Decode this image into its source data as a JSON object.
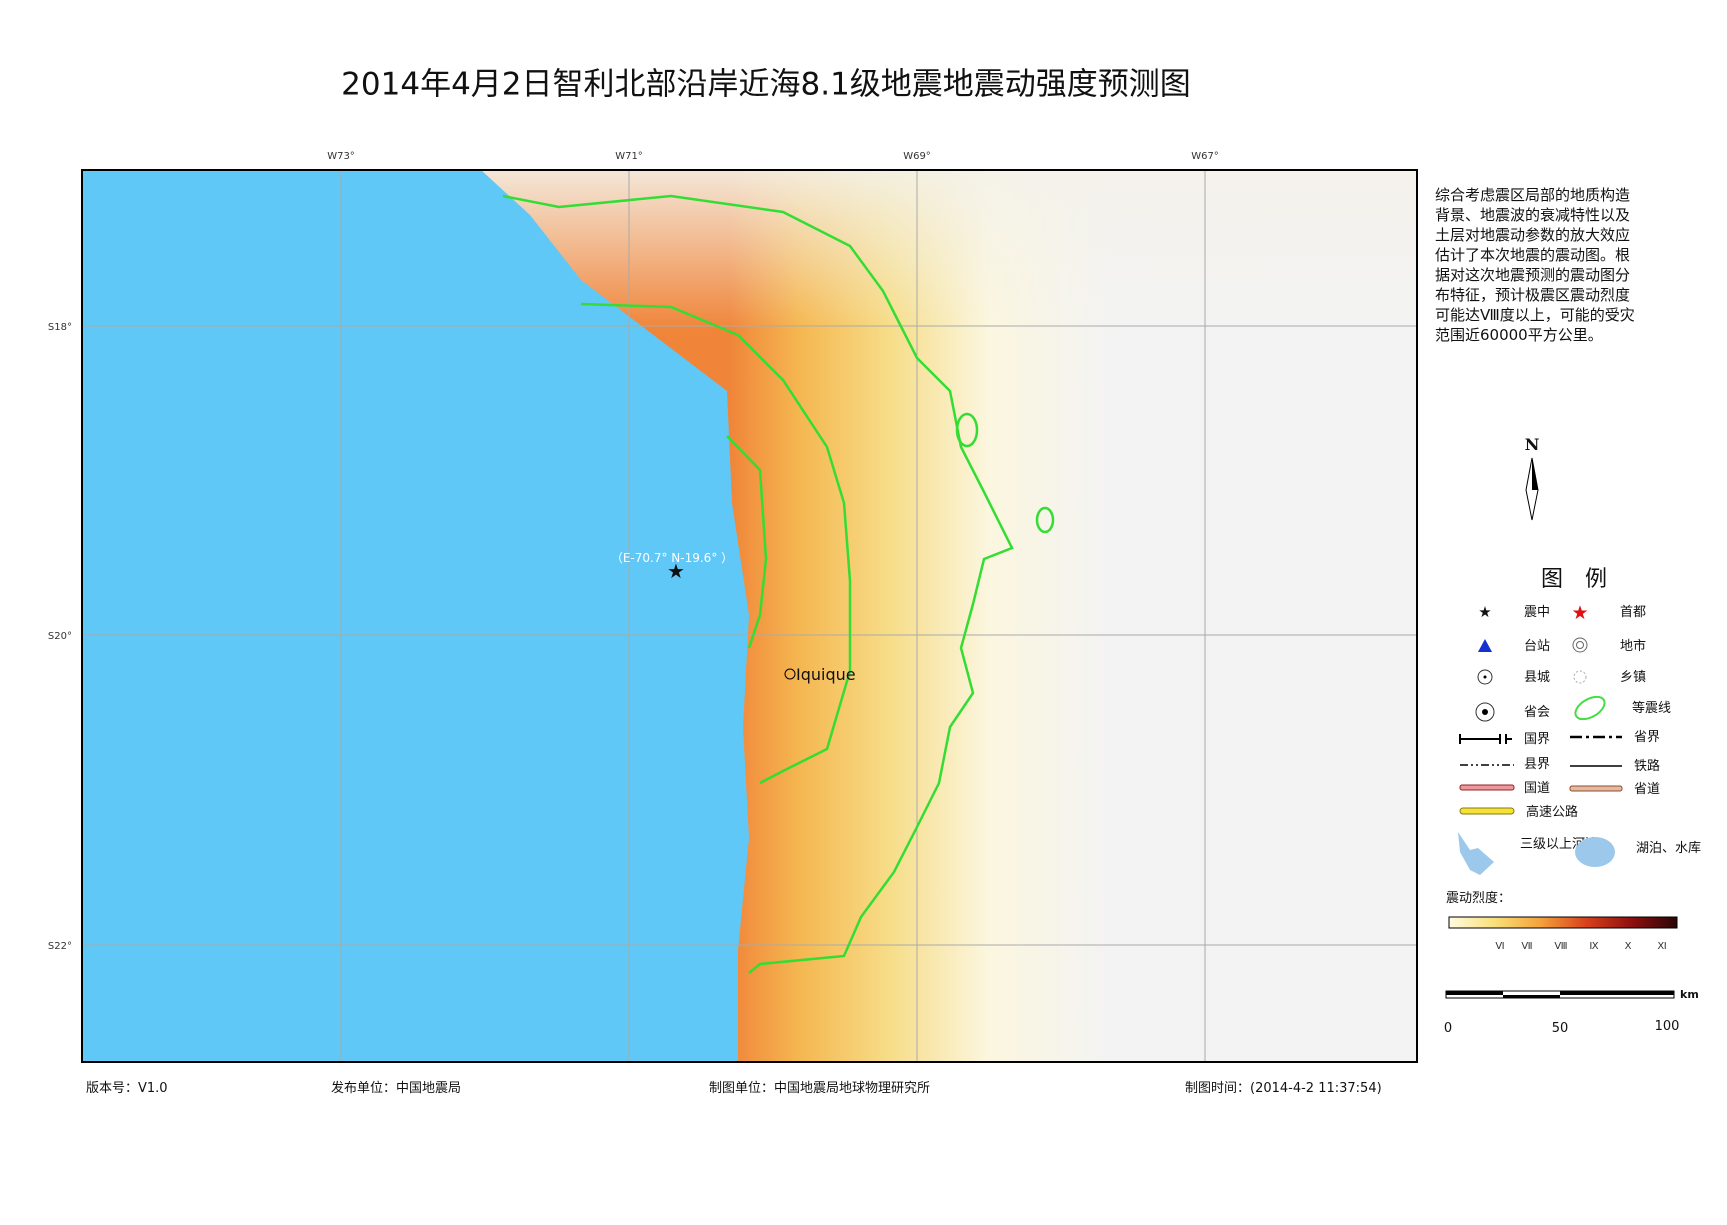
{
  "header": {
    "title": "2014年4月2日智利北部沿岸近海8.1级地震地震动强度预测图"
  },
  "map": {
    "lon_labels": [
      "W73°",
      "W71°",
      "W69°",
      "W67°"
    ],
    "lat_labels": [
      "S18°",
      "S20°",
      "S22°"
    ],
    "epicenter_label": "（E-70.7° N-19.6° ）",
    "city": "Iquique"
  },
  "description": [
    "综合考虑震区局部的地质构造",
    "背景、地震波的衰减特性以及",
    "土层对地震动参数的放大效应",
    "估计了本次地震的震动图。根",
    "据对这次地震预测的震动图分",
    "布特征，预计极震区震动烈度",
    "可能达Ⅷ度以上，可能的受灾",
    "范围近60000平方公里。"
  ],
  "north": "N",
  "legend": {
    "title": "图　例",
    "items": [
      "震中",
      "首都",
      "台站",
      "地市",
      "县城",
      "乡镇",
      "省会",
      "等震线",
      "国界",
      "省界",
      "县界",
      "铁路",
      "国道",
      "省道",
      "高速公路",
      "三级以上河流",
      "湖泊、水库"
    ],
    "intensity_title": "震动烈度：",
    "intensity_labels": [
      "Ⅵ",
      "Ⅶ",
      "Ⅷ",
      "Ⅸ",
      "Ⅹ",
      "Ⅺ"
    ]
  },
  "scale": {
    "unit": "km",
    "labels": [
      "0",
      "50",
      "100"
    ]
  },
  "footer": [
    "版本号：V1.0",
    "发布单位：中国地震局",
    "制图单位：中国地震局地球物理研究所",
    "制图时间：(2014-4-2 11:37:54)"
  ]
}
